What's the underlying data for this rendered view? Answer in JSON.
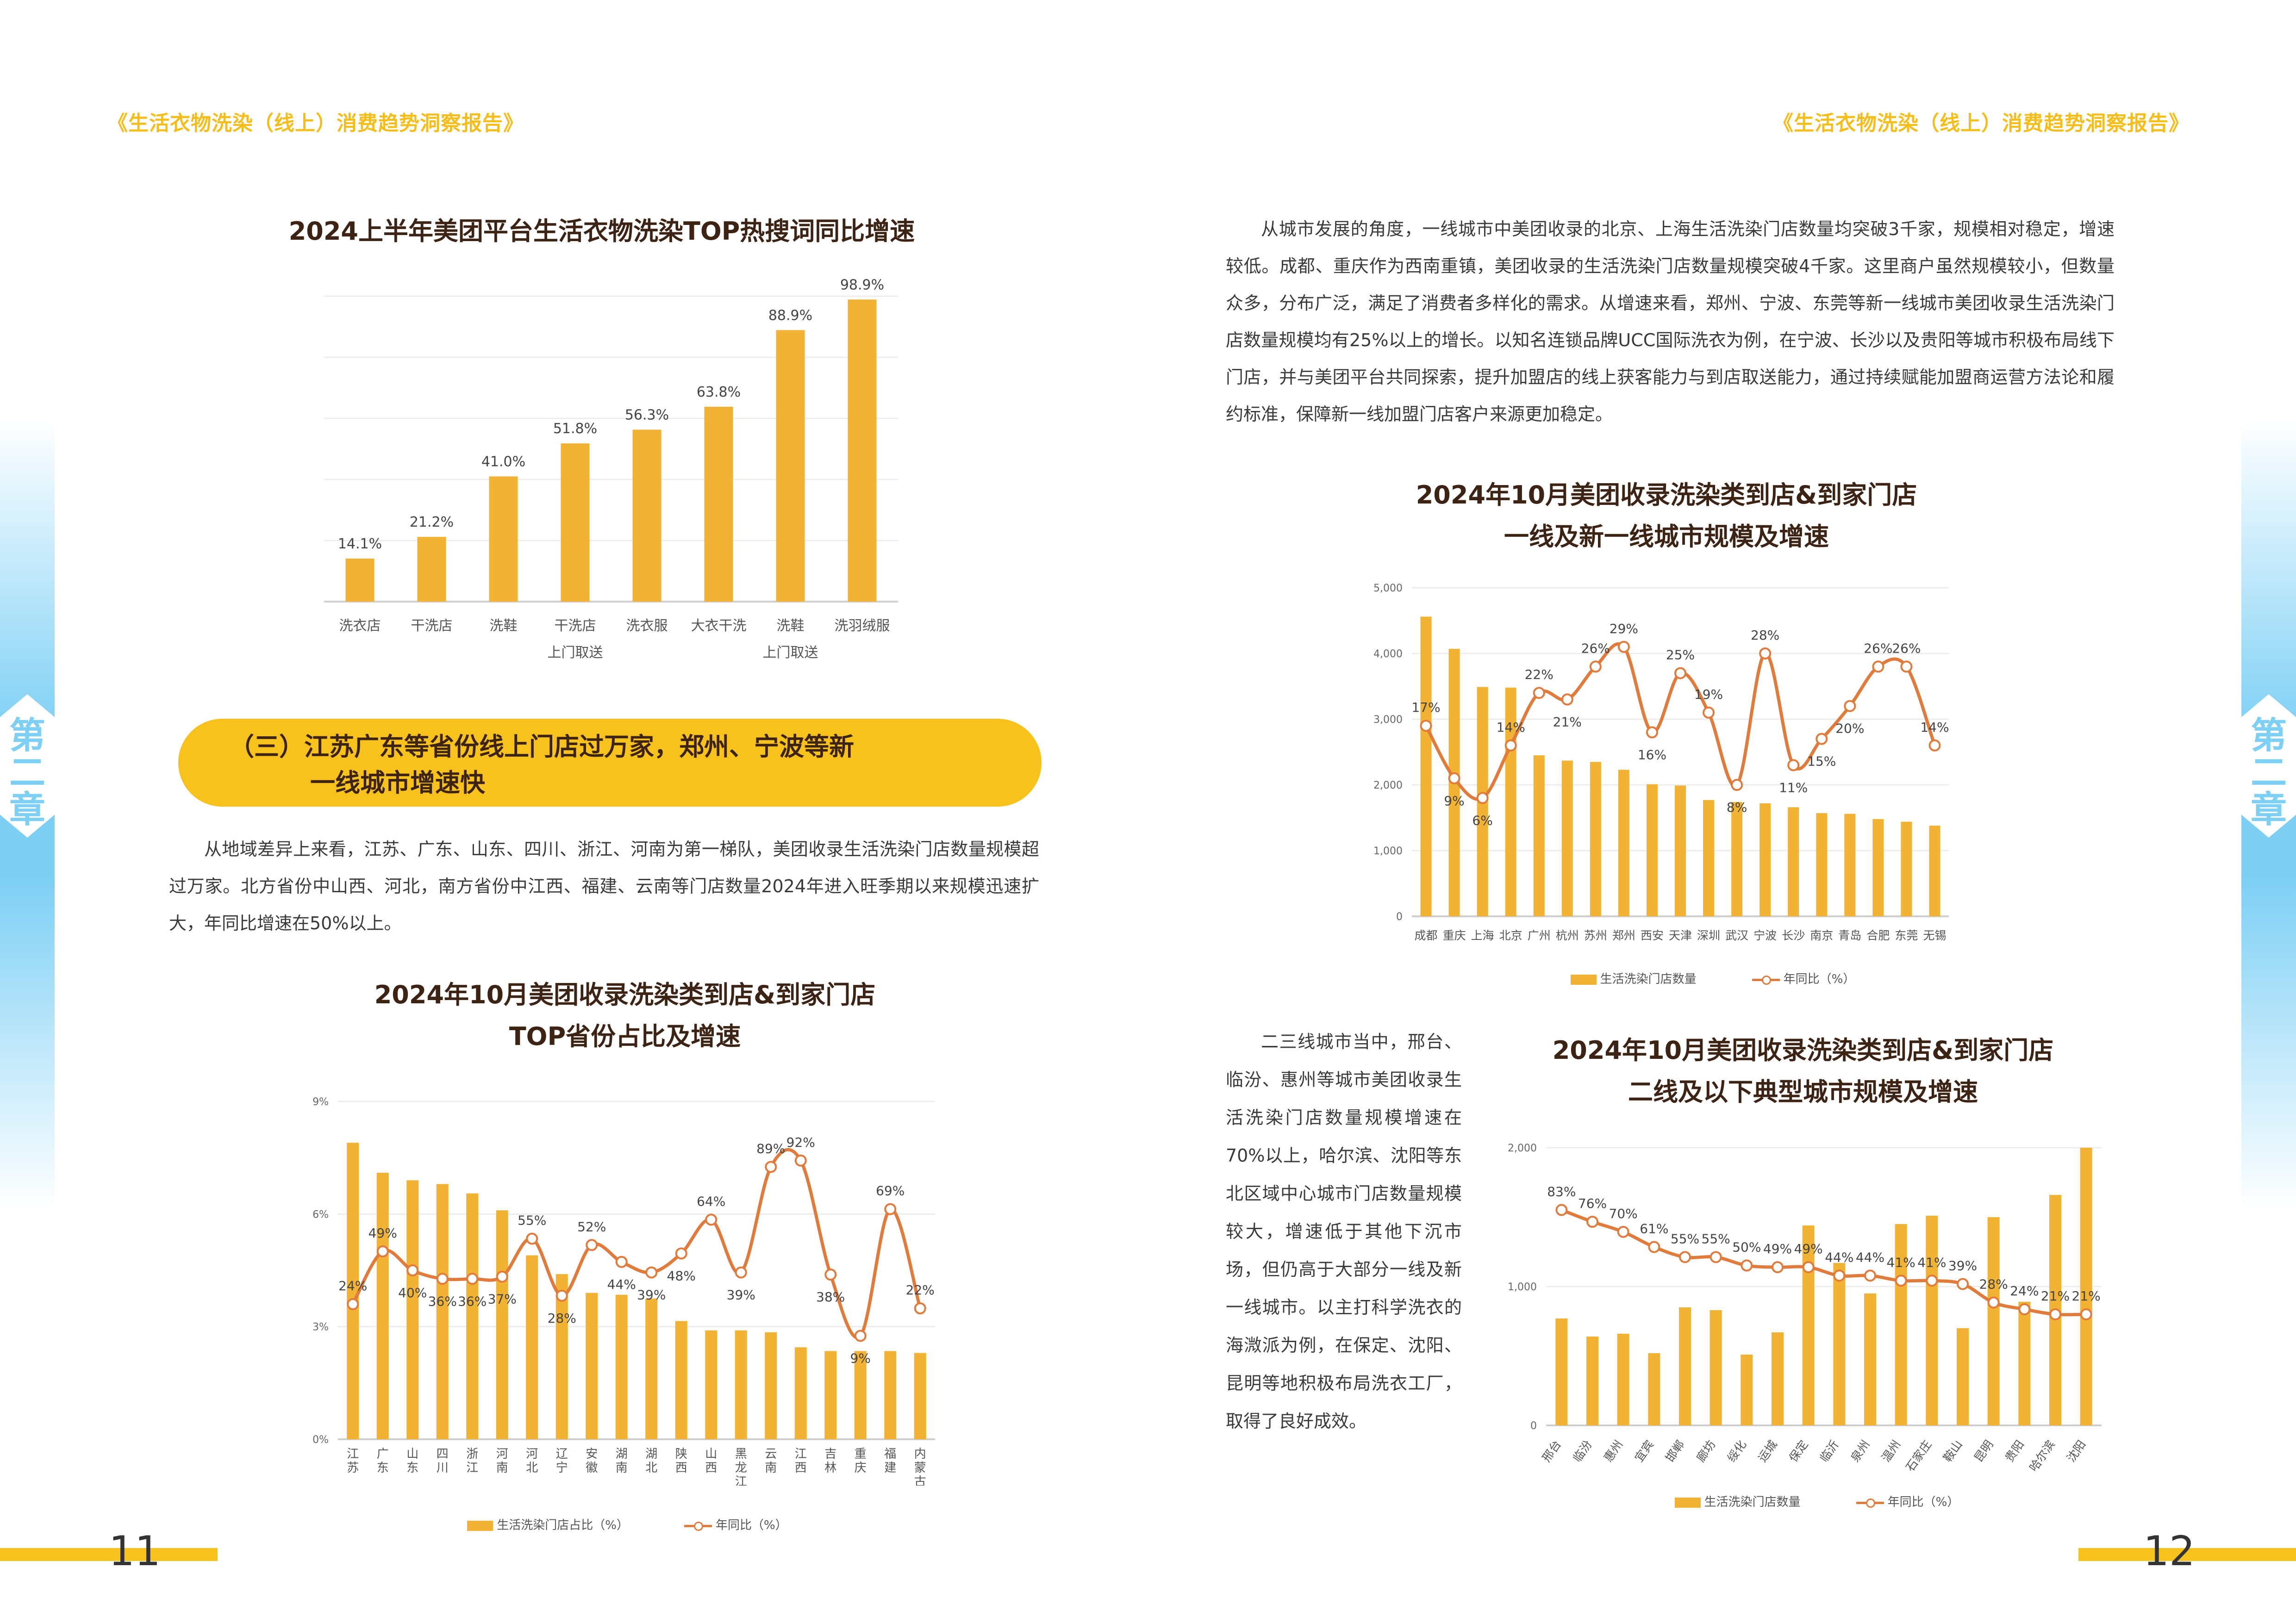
{
  "header": {
    "left_title": "《生活衣物洗染（线上）消费趋势洞察报告》",
    "right_title": "《生活衣物洗染（线上）消费趋势洞察报告》"
  },
  "side_tabs": {
    "left_label": "第二章",
    "right_label": "第二章"
  },
  "footer": {
    "left_page": "11",
    "right_page": "12"
  },
  "colors": {
    "bar": "#f2b233",
    "line": "#e07b3c",
    "accent": "#f8c21c",
    "title": "#3d2314",
    "tab": "#7dcff4"
  },
  "left_page": {
    "chart1_title": "2024上半年美团平台生活衣物洗染TOP热搜词同比增速",
    "section_heading_line1": "（三）江苏广东等省份线上门店过万家，郑州、宁波等新",
    "section_heading_line2": "一线城市增速快",
    "paragraph": "从地域差异上来看，江苏、广东、山东、四川、浙江、河南为第一梯队，美团收录生活洗染门店数量规模超过万家。北方省份中山西、河北，南方省份中江西、福建、云南等门店数量2024年进入旺季期以来规模迅速扩大，年同比增速在50%以上。",
    "chart2_title_line1": "2024年10月美团收录洗染类到店&到家门店",
    "chart2_title_line2": "TOP省份占比及增速"
  },
  "right_page": {
    "paragraph": "从城市发展的角度，一线城市中美团收录的北京、上海生活洗染门店数量均突破3千家，规模相对稳定，增速较低。成都、重庆作为西南重镇，美团收录的生活洗染门店数量规模突破4千家。这里商户虽然规模较小，但数量众多，分布广泛，满足了消费者多样化的需求。从增速来看，郑州、宁波、东莞等新一线城市美团收录生活洗染门店数量规模均有25%以上的增长。以知名连锁品牌UCC国际洗衣为例，在宁波、长沙以及贵阳等城市积极布局线下门店，并与美团平台共同探索，提升加盟店的线上获客能力与到店取送能力，通过持续赋能加盟商运营方法论和履约标准，保障新一线加盟门店客户来源更加稳定。",
    "chart3_title_line1": "2024年10月美团收录洗染类到店&到家门店",
    "chart3_title_line2": "一线及新一线城市规模及增速",
    "side_paragraph": "二三线城市当中，邢台、临汾、惠州等城市美团收录生活洗染门店数量规模增速在70%以上，哈尔滨、沈阳等东北区域中心城市门店数量规模较大，增速低于其他下沉市场，但仍高于大部分一线及新一线城市。以主打科学洗衣的海溦派为例，在保定、沈阳、昆明等地积极布局洗衣工厂，取得了良好成效。",
    "chart4_title_line1": "2024年10月美团收录洗染类到店&到家门店",
    "chart4_title_line2": "二线及以下典型城市规模及增速"
  },
  "chart_data": [
    {
      "id": "hot-search-growth",
      "type": "bar",
      "title": "2024上半年美团平台生活衣物洗染TOP热搜词同比增速",
      "categories": [
        "洗衣店",
        "干洗店",
        "洗鞋",
        "干洗店\n上门取送",
        "洗衣服",
        "大衣干洗",
        "洗鞋\n上门取送",
        "洗羽绒服"
      ],
      "values": [
        14.1,
        21.2,
        41.0,
        51.8,
        56.3,
        63.8,
        88.9,
        98.9
      ],
      "labels": [
        "14.1%",
        "21.2%",
        "41.0%",
        "51.8%",
        "56.3%",
        "63.8%",
        "88.9%",
        "98.9%"
      ],
      "ylim": [
        0,
        100
      ],
      "grid": true,
      "xlabel": "",
      "ylabel": ""
    },
    {
      "id": "province-share-growth",
      "type": "bar+line",
      "title": "2024年10月美团收录洗染类到店&到家门店TOP省份占比及增速",
      "categories": [
        "江苏",
        "广东",
        "山东",
        "四川",
        "浙江",
        "河南",
        "河北",
        "辽宁",
        "安徽",
        "湖南",
        "湖北",
        "陕西",
        "山西",
        "黑龙江",
        "云南",
        "江西",
        "吉林",
        "重庆",
        "福建",
        "内蒙古"
      ],
      "series": [
        {
          "name": "生活洗染门店占比（%）",
          "type": "bar",
          "axis": "left",
          "values": [
            7.9,
            7.1,
            6.9,
            6.8,
            6.55,
            6.1,
            4.9,
            4.4,
            3.9,
            3.85,
            3.75,
            3.15,
            2.9,
            2.9,
            2.85,
            2.45,
            2.35,
            2.35,
            2.35,
            2.3
          ]
        },
        {
          "name": "年同比（%）",
          "type": "line",
          "axis": "right",
          "values": [
            24,
            49,
            40,
            36,
            36,
            37,
            55,
            28,
            52,
            44,
            39,
            48,
            64,
            39,
            89,
            92,
            38,
            9,
            69,
            22
          ],
          "labels": [
            "24%",
            "49%",
            "40%",
            "36%",
            "36%",
            "37%",
            "55%",
            "28%",
            "52%",
            "44%",
            "39%",
            "48%",
            "64%",
            "39%",
            "89%",
            "92%",
            "38%",
            "9%",
            "69%",
            "22%"
          ]
        }
      ],
      "yticks": [
        "0%",
        "3%",
        "6%",
        "9%"
      ],
      "ylim": [
        0,
        9
      ],
      "grid": true,
      "legend_position": "bottom"
    },
    {
      "id": "tier1-cities",
      "type": "bar+line",
      "title": "2024年10月美团收录洗染类到店&到家门店一线及新一线城市规模及增速",
      "categories": [
        "成都",
        "重庆",
        "上海",
        "北京",
        "广州",
        "杭州",
        "苏州",
        "郑州",
        "西安",
        "天津",
        "深圳",
        "武汉",
        "宁波",
        "长沙",
        "南京",
        "青岛",
        "合肥",
        "东莞",
        "无锡"
      ],
      "series": [
        {
          "name": "生活洗染门店数量",
          "type": "bar",
          "axis": "left",
          "values": [
            4560,
            4070,
            3490,
            3480,
            2450,
            2370,
            2350,
            2230,
            2010,
            1990,
            1770,
            1740,
            1720,
            1660,
            1570,
            1560,
            1480,
            1440,
            1380
          ]
        },
        {
          "name": "年同比（%）",
          "type": "line",
          "axis": "right",
          "values": [
            17,
            9,
            6,
            14,
            22,
            21,
            26,
            29,
            16,
            25,
            19,
            8,
            28,
            11,
            15,
            20,
            26,
            26,
            14
          ],
          "labels": [
            "17%",
            "9%",
            "6%",
            "14%",
            "22%",
            "21%",
            "26%",
            "29%",
            "16%",
            "25%",
            "19%",
            "8%",
            "28%",
            "11%",
            "15%",
            "20%",
            "26%",
            "26%",
            "14%"
          ]
        }
      ],
      "yticks": [
        "0",
        "1,000",
        "2,000",
        "3,000",
        "4,000",
        "5,000"
      ],
      "ylim": [
        0,
        5000
      ],
      "grid": true,
      "legend_position": "bottom"
    },
    {
      "id": "tier2-cities",
      "type": "bar+line",
      "title": "2024年10月美团收录洗染类到店&到家门店二线及以下典型城市规模及增速",
      "categories": [
        "邢台",
        "临汾",
        "惠州",
        "宜宾",
        "邯郸",
        "廊坊",
        "绥化",
        "运城",
        "保定",
        "临沂",
        "泉州",
        "温州",
        "石家庄",
        "鞍山",
        "昆明",
        "贵阳",
        "哈尔滨",
        "沈阳"
      ],
      "series": [
        {
          "name": "生活洗染门店数量",
          "type": "bar",
          "axis": "left",
          "values": [
            770,
            640,
            660,
            520,
            850,
            830,
            510,
            670,
            1440,
            1170,
            950,
            1450,
            1510,
            700,
            1500,
            890,
            1660,
            2000
          ]
        },
        {
          "name": "年同比（%）",
          "type": "line",
          "axis": "right",
          "values": [
            83,
            76,
            70,
            61,
            55,
            55,
            50,
            49,
            49,
            44,
            44,
            41,
            41,
            39,
            28,
            24,
            21,
            21
          ],
          "labels": [
            "83%",
            "76%",
            "70%",
            "61%",
            "55%",
            "55%",
            "50%",
            "49%",
            "49%",
            "44%",
            "44%",
            "41%",
            "41%",
            "39%",
            "28%",
            "24%",
            "21%",
            "21%"
          ]
        }
      ],
      "yticks": [
        "0",
        "1,000",
        "2,000"
      ],
      "ylim": [
        0,
        2000
      ],
      "grid": true,
      "legend_position": "bottom"
    }
  ]
}
